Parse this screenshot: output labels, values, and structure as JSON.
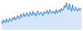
{
  "chart_data": {
    "type": "line",
    "color": "#3d8fe0",
    "tick_labels": false,
    "x": [
      1,
      2,
      3,
      4,
      5,
      6,
      7,
      8,
      9,
      10,
      11,
      12,
      13,
      14,
      15,
      16,
      17,
      18,
      19,
      20,
      21,
      22,
      23,
      24,
      25,
      26,
      27,
      28,
      29,
      30,
      31,
      32,
      33,
      34,
      35,
      36,
      37,
      38,
      39,
      40,
      41,
      42,
      43,
      44,
      45,
      46,
      47,
      48,
      49,
      50,
      51,
      52,
      53,
      54,
      55,
      56,
      57,
      58,
      59,
      60,
      61,
      62,
      63,
      64,
      65,
      66,
      67,
      68,
      69,
      70,
      71,
      72,
      73,
      74,
      75,
      76,
      77,
      78,
      79,
      80
    ],
    "values": [
      30,
      22,
      35,
      28,
      25,
      38,
      30,
      27,
      40,
      33,
      30,
      42,
      36,
      45,
      35,
      40,
      50,
      42,
      38,
      55,
      45,
      48,
      58,
      46,
      52,
      60,
      50,
      47,
      62,
      55,
      50,
      65,
      54,
      58,
      48,
      60,
      66,
      52,
      56,
      62,
      55,
      50,
      64,
      58,
      60,
      68,
      55,
      62,
      70,
      60,
      58,
      66,
      62,
      56,
      72,
      60,
      64,
      70,
      62,
      75,
      68,
      72,
      85,
      78,
      95,
      80,
      70,
      92,
      75,
      65,
      88,
      70,
      68,
      80,
      72,
      66,
      76,
      70,
      74,
      72
    ],
    "xlim": [
      1,
      80
    ],
    "ylim": [
      0,
      100
    ]
  }
}
